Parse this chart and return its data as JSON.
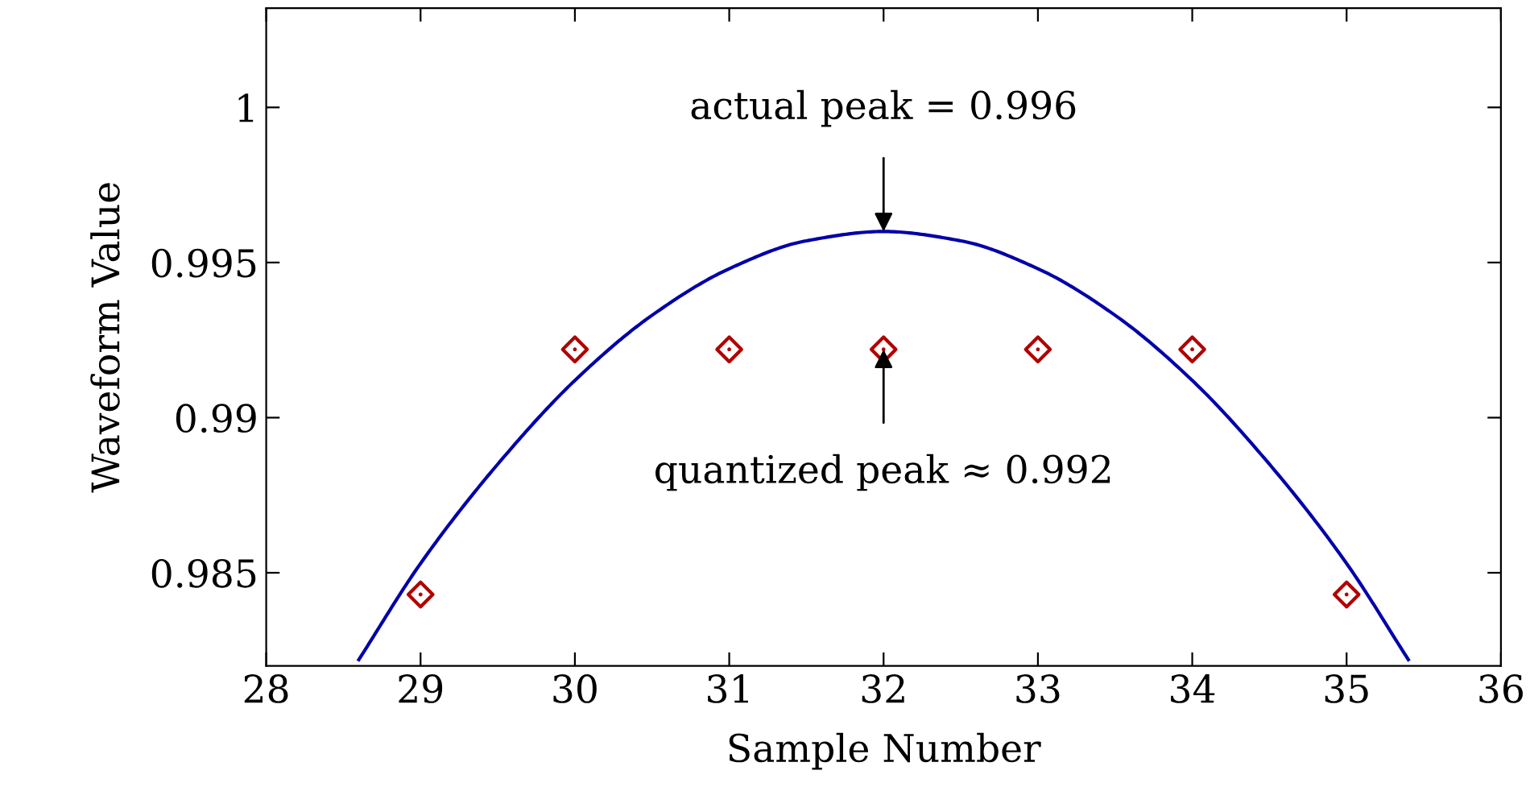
{
  "chart_data": {
    "type": "line",
    "xlabel": "Sample Number",
    "ylabel": "Waveform Value",
    "xlim": [
      28,
      36
    ],
    "xticks": [
      28,
      29,
      30,
      31,
      32,
      33,
      34,
      35,
      36
    ],
    "ylim": [
      0.982,
      1.0032
    ],
    "yticks": [
      0.985,
      0.99,
      0.995,
      1
    ],
    "grid": false,
    "series": [
      {
        "color": "#0000a8",
        "line_style": "solid",
        "marker": "none",
        "x": [
          28.6,
          29,
          29.5,
          30,
          30.5,
          31,
          31.5,
          32,
          32.5,
          33,
          33.5,
          34,
          34.5,
          35,
          35.4
        ],
        "values": [
          0.9822,
          0.9853,
          0.9885,
          0.9912,
          0.9933,
          0.9948,
          0.9957,
          0.996,
          0.9957,
          0.9948,
          0.9933,
          0.9912,
          0.9885,
          0.9853,
          0.9822
        ]
      },
      {
        "type": "scatter",
        "color": "#b00000",
        "marker": "diamond",
        "x": [
          29,
          30,
          31,
          32,
          33,
          34,
          35
        ],
        "values": [
          0.9843,
          0.9922,
          0.9922,
          0.9922,
          0.9922,
          0.9922,
          0.9843
        ]
      }
    ],
    "annotations": [
      {
        "text": "actual peak = 0.996",
        "x": 32,
        "y": 0.996
      },
      {
        "text": "quantized peak ≈ 0.992",
        "x": 32,
        "y": 0.9922
      }
    ]
  }
}
